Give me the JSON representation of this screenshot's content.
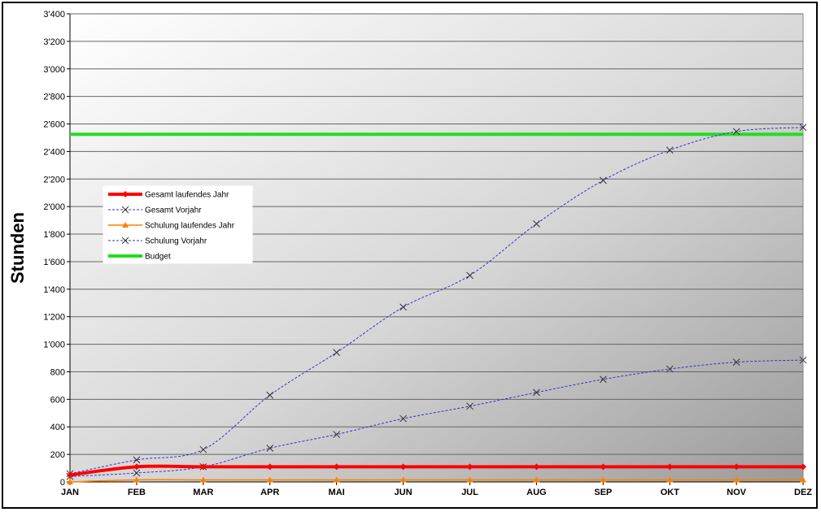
{
  "chart_data": {
    "type": "line",
    "ylabel": "Stunden",
    "xlabel": "",
    "title": "",
    "ylim": [
      0,
      3400
    ],
    "y_ticks": [
      "0",
      "200",
      "400",
      "600",
      "800",
      "1'000",
      "1'200",
      "1'400",
      "1'600",
      "1'800",
      "2'000",
      "2'200",
      "2'400",
      "2'600",
      "2'800",
      "3'000",
      "3'200",
      "3'400"
    ],
    "y_tick_step": 200,
    "categories": [
      "JAN",
      "FEB",
      "MAR",
      "APR",
      "MAI",
      "JUN",
      "JUL",
      "AUG",
      "SEP",
      "OKT",
      "NOV",
      "DEZ"
    ],
    "grid": true,
    "legend_position": "left",
    "series": [
      {
        "name": "Gesamt laufendes Jahr",
        "color": "#ff0000",
        "marker": "diamond",
        "style": "thick-solid",
        "values": [
          50,
          110,
          110,
          110,
          110,
          110,
          110,
          110,
          110,
          110,
          110,
          110
        ]
      },
      {
        "name": "Gesamt Vorjahr",
        "color": "#3333cc",
        "marker": "x",
        "style": "dashed",
        "values": [
          60,
          160,
          235,
          630,
          940,
          1270,
          1500,
          1875,
          2190,
          2410,
          2545,
          2575
        ]
      },
      {
        "name": "Schulung laufendes Jahr",
        "color": "#ff8000",
        "marker": "triangle",
        "style": "solid",
        "values": [
          0,
          15,
          15,
          15,
          15,
          15,
          15,
          15,
          15,
          15,
          15,
          15
        ]
      },
      {
        "name": "Schulung Vorjahr",
        "color": "#3333cc",
        "marker": "x",
        "style": "dashed",
        "values": [
          40,
          65,
          110,
          245,
          345,
          460,
          550,
          650,
          745,
          820,
          870,
          885
        ]
      },
      {
        "name": "Budget",
        "color": "#22dd22",
        "marker": "none",
        "style": "thick-solid",
        "values": [
          2525,
          2525,
          2525,
          2525,
          2525,
          2525,
          2525,
          2525,
          2525,
          2525,
          2525,
          2525
        ]
      }
    ]
  }
}
